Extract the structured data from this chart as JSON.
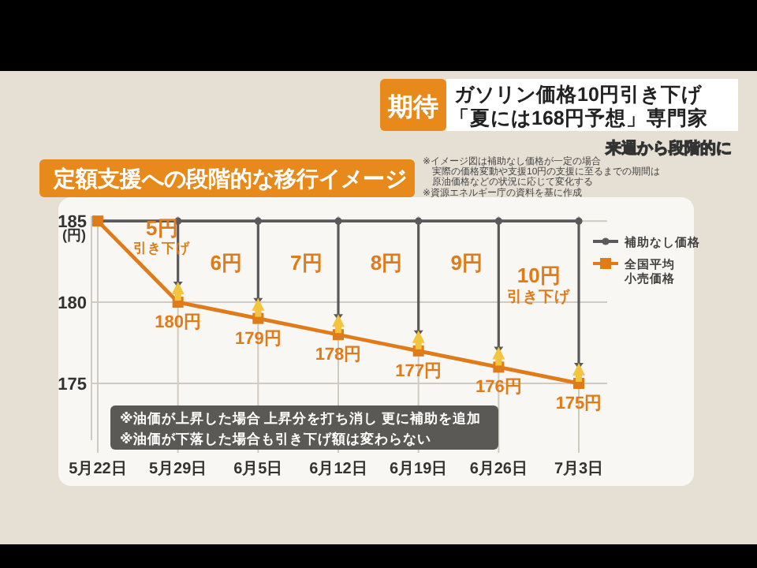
{
  "chart_data": {
    "type": "line",
    "title": "定額支援への段階的な移行イメージ",
    "subtitle": "来週から段階的に",
    "ylabel": "(円)",
    "categories": [
      "5月22日",
      "5月29日",
      "6月5日",
      "6月12日",
      "6月19日",
      "6月26日",
      "7月3日"
    ],
    "series": [
      {
        "name": "補助なし価格",
        "color": "#5a5a5a",
        "marker": "circle",
        "values": [
          185,
          185,
          185,
          185,
          185,
          185,
          185
        ]
      },
      {
        "name": "全国平均小売価格",
        "color": "#e07b1a",
        "marker": "square",
        "values": [
          185,
          180,
          179,
          178,
          177,
          176,
          175
        ],
        "value_labels": [
          null,
          "180円",
          "179円",
          "178円",
          "177円",
          "176円",
          "175円"
        ]
      }
    ],
    "ylim": [
      171.5,
      185.3
    ],
    "yticks": [
      175,
      180,
      185
    ],
    "grid": true,
    "legend": "top right",
    "annotations": [
      "期待",
      "ガソリン価格10円引き下げ",
      "「夏には168円予想」専門家",
      "※イメージ図は補助なし価格が一定の場合",
      "実際の価格変動や支援10円の支援に至るまでの期間は",
      "原油価格などの状況に応じて変化する",
      "※資源エネルギー庁の資料を基に作成",
      "※油価が上昇した場合 上昇分を打ち消し 更に補助を追加",
      "※油価が下落した場合も引き下げ額は変わらない",
      "5円",
      "引き下げ",
      "6円",
      "7円",
      "8円",
      "9円",
      "10円",
      "引き下げ"
    ]
  }
}
